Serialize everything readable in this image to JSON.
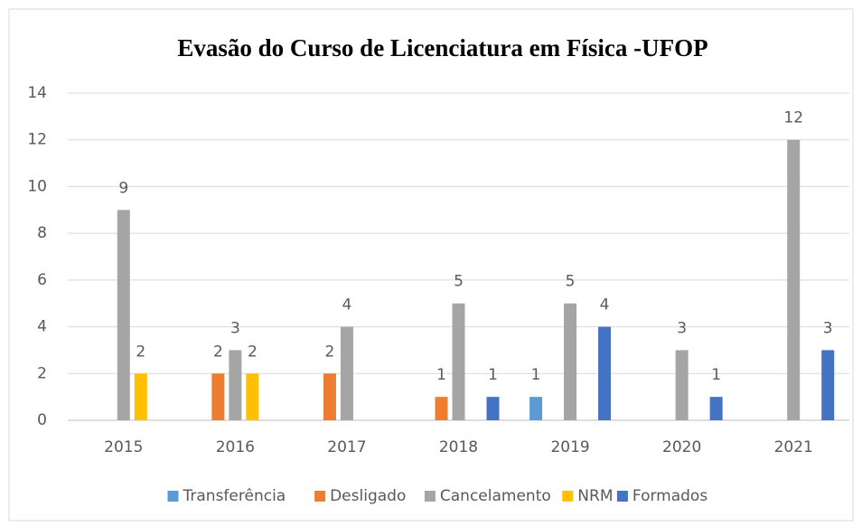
{
  "chart_data": {
    "type": "bar",
    "title": "Evasão do Curso de Licenciatura em Física -UFOP",
    "categories": [
      "2015",
      "2016",
      "2017",
      "2018",
      "2019",
      "2020",
      "2021"
    ],
    "series": [
      {
        "name": "Transferência",
        "color": "#5b9bd5",
        "values": [
          null,
          null,
          null,
          null,
          1,
          null,
          null
        ]
      },
      {
        "name": "Desligado",
        "color": "#ed7d31",
        "values": [
          null,
          2,
          2,
          1,
          null,
          null,
          null
        ]
      },
      {
        "name": "Cancelamento",
        "color": "#a5a5a5",
        "values": [
          9,
          3,
          4,
          5,
          5,
          3,
          12
        ]
      },
      {
        "name": "NRM",
        "color": "#ffc000",
        "values": [
          2,
          2,
          null,
          null,
          null,
          null,
          null
        ]
      },
      {
        "name": "Formados",
        "color": "#4472c4",
        "values": [
          null,
          null,
          null,
          1,
          4,
          1,
          3
        ]
      }
    ],
    "ylim": [
      0,
      14
    ],
    "yticks": [
      0,
      2,
      4,
      6,
      8,
      10,
      12,
      14
    ],
    "grid": true,
    "legend": "bottom"
  }
}
